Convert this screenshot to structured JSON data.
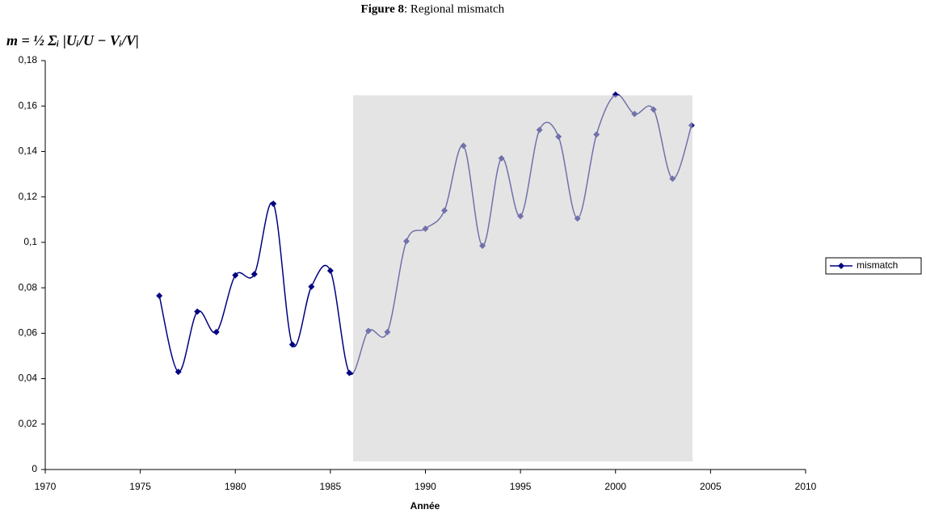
{
  "chart_data": {
    "type": "line",
    "figure_label": "Figure 8",
    "title": ": Regional mismatch",
    "formula": "m = ½ Σᵢ |Uᵢ/U − Vᵢ/V|",
    "x_label": "Année",
    "x": [
      1976,
      1977,
      1978,
      1979,
      1980,
      1981,
      1982,
      1983,
      1984,
      1985,
      1986,
      1987,
      1988,
      1989,
      1990,
      1991,
      1992,
      1993,
      1994,
      1995,
      1996,
      1997,
      1998,
      1999,
      2000,
      2001,
      2002,
      2003,
      2004
    ],
    "series": [
      {
        "name": "mismatch",
        "color": "#000080",
        "values": [
          0.0765,
          0.043,
          0.0695,
          0.0605,
          0.0855,
          0.086,
          0.117,
          0.055,
          0.0805,
          0.0875,
          0.0425,
          0.061,
          0.0605,
          0.1005,
          0.106,
          0.114,
          0.1425,
          0.0985,
          0.137,
          0.1115,
          0.1495,
          0.1465,
          0.1105,
          0.1475,
          0.165,
          0.1565,
          0.1585,
          0.128,
          0.1515
        ]
      }
    ],
    "xlim": [
      1970,
      2010
    ],
    "xticks": [
      1970,
      1975,
      1980,
      1985,
      1990,
      1995,
      2000,
      2005,
      2010
    ],
    "ylim": [
      0,
      0.18
    ],
    "yticks": [
      0,
      {
        "value": 0.02,
        "label": "0,02"
      },
      {
        "value": 0.04,
        "label": "0,04"
      },
      {
        "value": 0.06,
        "label": "0,06"
      },
      {
        "value": 0.08,
        "label": "0,08"
      },
      {
        "value": 0.1,
        "label": "0,1"
      },
      {
        "value": 0.12,
        "label": "0,12"
      },
      {
        "value": 0.14,
        "label": "0,14"
      },
      {
        "value": 0.16,
        "label": "0,16"
      },
      {
        "value": 0.18,
        "label": "0,18"
      }
    ],
    "legend": "right"
  }
}
